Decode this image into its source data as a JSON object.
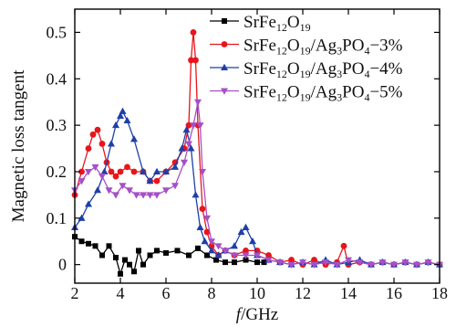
{
  "chart_data": {
    "type": "line",
    "title": "",
    "xlabel_italic": "f",
    "xlabel_rest": "/GHz",
    "ylabel": "Magnetic loss tangent",
    "xlim": [
      2,
      18
    ],
    "ylim": [
      -0.04,
      0.55
    ],
    "x_ticks": [
      "2",
      "4",
      "6",
      "8",
      "10",
      "12",
      "14",
      "16",
      "18"
    ],
    "y_ticks": [
      "0",
      "0.1",
      "0.2",
      "0.3",
      "0.4",
      "0.5"
    ],
    "grid": false,
    "legend_position": "top-right",
    "series": [
      {
        "legend_base": "SrFe",
        "legend_s1": "12",
        "legend_mid1": "O",
        "legend_s2": "19",
        "legend_mid2": "",
        "legend_s3": "",
        "legend_mid3": "",
        "legend_s4": "",
        "legend_tail": "",
        "color": "#000000",
        "marker": "square",
        "x": [
          2.0,
          2.3,
          2.6,
          2.9,
          3.2,
          3.5,
          3.8,
          4.0,
          4.2,
          4.4,
          4.6,
          4.8,
          5.0,
          5.3,
          5.6,
          6.0,
          6.5,
          7.0,
          7.4,
          7.8,
          8.2,
          8.6,
          9.0,
          9.5,
          10.0,
          10.3
        ],
        "y": [
          0.06,
          0.05,
          0.045,
          0.04,
          0.02,
          0.04,
          0.015,
          -0.02,
          0.01,
          0.0,
          -0.015,
          0.03,
          0.0,
          0.02,
          0.03,
          0.025,
          0.03,
          0.02,
          0.035,
          0.02,
          0.01,
          0.005,
          0.005,
          0.01,
          0.005,
          0.005
        ]
      },
      {
        "legend_base": "SrFe",
        "legend_s1": "12",
        "legend_mid1": "O",
        "legend_s2": "19",
        "legend_mid2": "/Ag",
        "legend_s3": "3",
        "legend_mid3": "PO",
        "legend_s4": "4",
        "legend_tail": "−3%",
        "color": "#e8151b",
        "marker": "circle",
        "x": [
          2.0,
          2.3,
          2.6,
          2.8,
          3.0,
          3.2,
          3.4,
          3.6,
          3.8,
          4.0,
          4.3,
          4.6,
          5.0,
          5.3,
          5.6,
          6.0,
          6.4,
          6.8,
          7.0,
          7.1,
          7.2,
          7.3,
          7.4,
          7.6,
          7.8,
          8.0,
          8.3,
          8.6,
          9.0,
          9.5,
          10.0,
          10.5,
          11.0,
          11.5,
          12.0,
          12.5,
          13.0,
          13.5,
          13.8,
          14.0,
          14.5,
          15.0,
          15.5,
          16.0,
          16.5,
          17.0,
          17.5,
          18.0
        ],
        "y": [
          0.15,
          0.2,
          0.25,
          0.28,
          0.29,
          0.26,
          0.22,
          0.2,
          0.19,
          0.2,
          0.21,
          0.2,
          0.2,
          0.18,
          0.18,
          0.2,
          0.22,
          0.25,
          0.3,
          0.44,
          0.5,
          0.44,
          0.3,
          0.12,
          0.07,
          0.04,
          0.02,
          0.03,
          0.02,
          0.03,
          0.03,
          0.02,
          0.005,
          0.01,
          0.0,
          0.01,
          0.0,
          0.005,
          0.04,
          0.0,
          0.005,
          0.0,
          0.005,
          0.0,
          0.005,
          0.0,
          0.005,
          0.0
        ]
      },
      {
        "legend_base": "SrFe",
        "legend_s1": "12",
        "legend_mid1": "O",
        "legend_s2": "19",
        "legend_mid2": "/Ag",
        "legend_s3": "3",
        "legend_mid3": "PO",
        "legend_s4": "4",
        "legend_tail": "−4%",
        "color": "#1f3fa8",
        "marker": "triangle-up",
        "x": [
          2.0,
          2.3,
          2.6,
          3.0,
          3.3,
          3.6,
          3.8,
          4.0,
          4.1,
          4.3,
          4.6,
          5.0,
          5.3,
          5.6,
          6.0,
          6.4,
          6.7,
          6.9,
          7.1,
          7.3,
          7.5,
          7.7,
          8.0,
          8.3,
          8.6,
          9.0,
          9.3,
          9.5,
          9.8,
          10.0,
          10.5,
          11.0,
          11.5,
          12.0,
          12.5,
          13.0,
          13.5,
          14.0,
          14.5,
          15.0,
          15.5,
          16.0,
          16.5,
          17.0,
          17.5,
          18.0
        ],
        "y": [
          0.08,
          0.1,
          0.13,
          0.16,
          0.2,
          0.26,
          0.3,
          0.32,
          0.33,
          0.31,
          0.27,
          0.2,
          0.18,
          0.2,
          0.2,
          0.21,
          0.25,
          0.29,
          0.25,
          0.15,
          0.08,
          0.05,
          0.03,
          0.02,
          0.03,
          0.04,
          0.07,
          0.08,
          0.05,
          0.02,
          0.01,
          0.005,
          0.0,
          0.005,
          0.0,
          0.01,
          0.0,
          0.005,
          0.01,
          0.0,
          0.005,
          0.0,
          0.005,
          0.0,
          0.005,
          0.0
        ]
      },
      {
        "legend_base": "SrFe",
        "legend_s1": "12",
        "legend_mid1": "O",
        "legend_s2": "19",
        "legend_mid2": "/Ag",
        "legend_s3": "3",
        "legend_mid3": "PO",
        "legend_s4": "4",
        "legend_tail": "−5%",
        "color": "#a64fc8",
        "marker": "triangle-down",
        "x": [
          2.0,
          2.3,
          2.6,
          2.9,
          3.2,
          3.5,
          3.8,
          4.1,
          4.4,
          4.7,
          5.0,
          5.3,
          5.6,
          6.0,
          6.4,
          6.8,
          7.0,
          7.2,
          7.4,
          7.5,
          7.6,
          7.8,
          8.0,
          8.3,
          8.6,
          9.0,
          9.5,
          10.0,
          10.5,
          11.0,
          11.5,
          12.0,
          12.5,
          13.0,
          13.5,
          14.0,
          14.5,
          15.0,
          15.5,
          16.0,
          16.5,
          17.0,
          17.5,
          18.0
        ],
        "y": [
          0.16,
          0.18,
          0.2,
          0.21,
          0.19,
          0.16,
          0.15,
          0.17,
          0.16,
          0.15,
          0.15,
          0.15,
          0.15,
          0.16,
          0.17,
          0.22,
          0.26,
          0.3,
          0.35,
          0.3,
          0.2,
          0.1,
          0.05,
          0.04,
          0.03,
          0.02,
          0.02,
          0.02,
          0.01,
          0.005,
          0.0,
          0.005,
          0.0,
          0.005,
          0.0,
          0.01,
          0.005,
          0.0,
          0.005,
          0.0,
          0.005,
          0.0,
          0.005,
          0.0
        ]
      }
    ]
  }
}
